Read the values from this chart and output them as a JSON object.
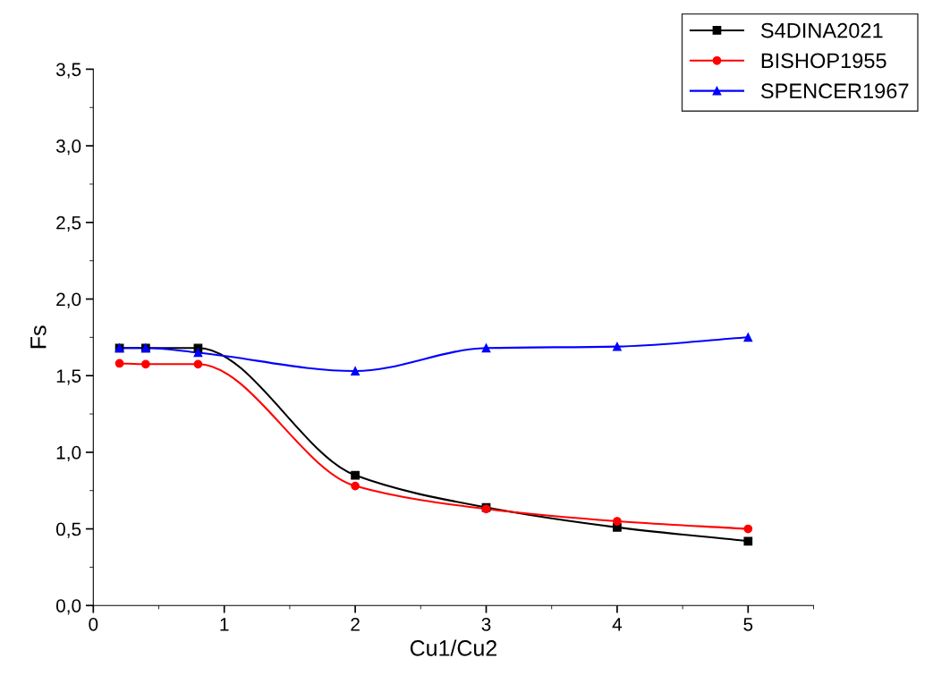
{
  "chart_data": {
    "type": "line",
    "xlabel": "Cu1/Cu2",
    "ylabel": "Fs",
    "x": [
      0.2,
      0.4,
      0.8,
      2,
      3,
      4,
      5
    ],
    "series": [
      {
        "name": "S4DINA2021",
        "color": "#000000",
        "marker": "square",
        "values": [
          1.68,
          1.68,
          1.68,
          0.85,
          0.64,
          0.51,
          0.42
        ]
      },
      {
        "name": "BISHOP1955",
        "color": "#ff0000",
        "marker": "circle",
        "values": [
          1.58,
          1.575,
          1.575,
          0.78,
          0.63,
          0.55,
          0.5
        ]
      },
      {
        "name": "SPENCER1967",
        "color": "#0000ff",
        "marker": "triangle",
        "values": [
          1.68,
          1.68,
          1.65,
          1.53,
          1.68,
          1.69,
          1.75
        ]
      }
    ],
    "xlim": [
      0,
      5.5
    ],
    "xticks": [
      0,
      1,
      2,
      3,
      4,
      5
    ],
    "ylim": [
      0,
      3.5
    ],
    "yticks": [
      {
        "value": 0,
        "label": "0,0"
      },
      {
        "value": 0.5,
        "label": "0,5"
      },
      {
        "value": 1,
        "label": "1,0"
      },
      {
        "value": 1.5,
        "label": "1,5"
      },
      {
        "value": 2,
        "label": "2,0"
      },
      {
        "value": 2.5,
        "label": "2,5"
      },
      {
        "value": 3,
        "label": "3,0"
      },
      {
        "value": 3.5,
        "label": "3,5"
      }
    ],
    "grid": false,
    "legend": "top right",
    "line_style": "solid"
  }
}
